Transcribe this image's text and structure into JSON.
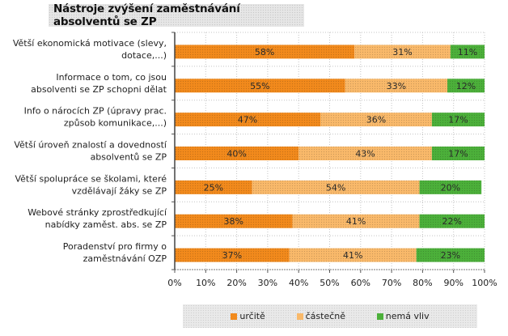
{
  "chart_data": {
    "type": "bar",
    "orientation": "horizontal",
    "stacked": "percent",
    "title": "Nástroje zvýšení zaměstnávání absolventů se ZP",
    "xlabel": "",
    "ylabel": "",
    "xlim": [
      0,
      100
    ],
    "x_ticks": [
      "0%",
      "10%",
      "20%",
      "30%",
      "40%",
      "50%",
      "60%",
      "70%",
      "80%",
      "90%",
      "100%"
    ],
    "grid": true,
    "legend_position": "bottom",
    "categories": [
      [
        "Větší ekonomická motivace (slevy,",
        "dotace,...)"
      ],
      [
        "Informace o tom, co jsou",
        "absolventi se ZP schopni dělat"
      ],
      [
        "Info o nárocích ZP (úpravy prac.",
        "způsob komunikace,...)"
      ],
      [
        "Větší úroveň znalostí a dovedností",
        "absolventů se ZP"
      ],
      [
        "Větší spolupráce se školami, které",
        "vzdělávají žáky se ZP"
      ],
      [
        "Webové stránky zprostředkující",
        "nabídky zaměst. abs. se ZP"
      ],
      [
        "Poradenství pro firmy o",
        "zaměstnávání OZP"
      ]
    ],
    "series": [
      {
        "name": "určitě",
        "color": "#f28a1c",
        "values": [
          58,
          55,
          47,
          40,
          25,
          38,
          37
        ]
      },
      {
        "name": "částečně",
        "color": "#f9b96a",
        "values": [
          31,
          33,
          36,
          43,
          54,
          41,
          41
        ]
      },
      {
        "name": "nemá vliv",
        "color": "#4cb03a",
        "values": [
          11,
          12,
          17,
          17,
          20,
          22,
          23
        ]
      }
    ]
  }
}
